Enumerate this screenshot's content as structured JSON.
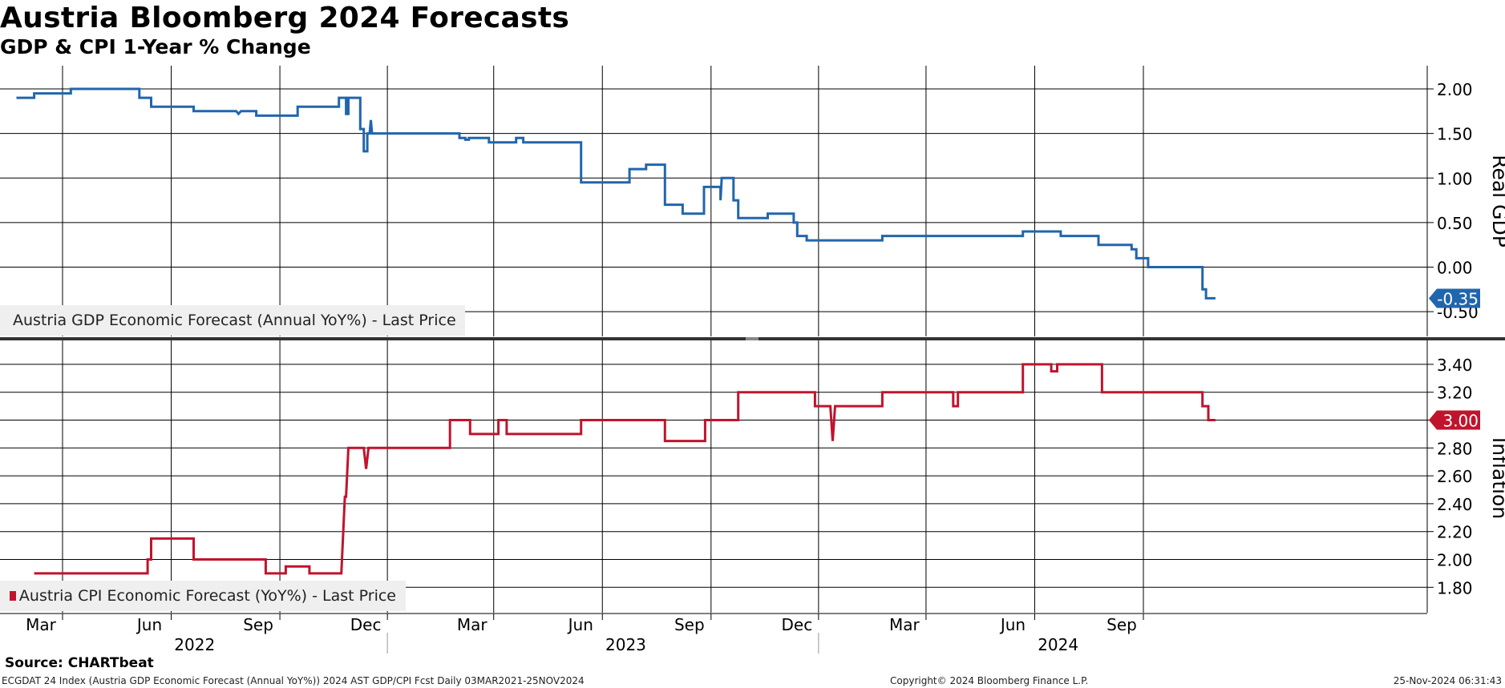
{
  "header": {
    "title": "Austria Bloomberg 2024 Forecasts",
    "subtitle": "GDP & CPI 1-Year % Change"
  },
  "legend": {
    "gdp": "Austria GDP Economic Forecast (Annual YoY%) - Last Price",
    "cpi": "Austria CPI Economic Forecast (YoY%) - Last Price"
  },
  "footer": {
    "source": "Source: CHARTbeat",
    "ticker_line": "ECGDAT 24 Index (Austria GDP Economic Forecast (Annual YoY%)) 2024 AST GDP/CPI Fcst  Daily 03MAR2021-25NOV2024",
    "copyright": "Copyright© 2024 Bloomberg Finance L.P.",
    "timestamp": "25-Nov-2024 06:31:43"
  },
  "colors": {
    "gdp": "#2166ac",
    "cpi": "#c0142d",
    "grid": "#000000",
    "legend_bg": "#efefef"
  },
  "chart_data": [
    {
      "type": "line",
      "name": "gdp-panel",
      "ylabel": "Real GDP",
      "ylim": [
        -0.75,
        2.25
      ],
      "yticks": [
        2.0,
        1.5,
        1.0,
        0.5,
        0.0,
        -0.5
      ],
      "ytick_labels": [
        "2.00",
        "1.50",
        "1.00",
        "0.50",
        "0.00",
        "-0.50"
      ],
      "last_value_label": "-0.35",
      "series": [
        {
          "name": "Austria GDP Economic Forecast (Annual YoY%) - Last Price",
          "points": [
            [
              "2022-01-21",
              1.9
            ],
            [
              "2022-02-05",
              1.9
            ],
            [
              "2022-02-05",
              1.95
            ],
            [
              "2022-03-08",
              1.95
            ],
            [
              "2022-03-08",
              2.0
            ],
            [
              "2022-05-05",
              2.0
            ],
            [
              "2022-05-05",
              1.9
            ],
            [
              "2022-05-15",
              1.9
            ],
            [
              "2022-05-15",
              1.8
            ],
            [
              "2022-06-20",
              1.8
            ],
            [
              "2022-06-20",
              1.75
            ],
            [
              "2022-07-26",
              1.75
            ],
            [
              "2022-07-28",
              1.72
            ],
            [
              "2022-07-30",
              1.75
            ],
            [
              "2022-08-12",
              1.75
            ],
            [
              "2022-08-12",
              1.7
            ],
            [
              "2022-09-16",
              1.7
            ],
            [
              "2022-09-16",
              1.8
            ],
            [
              "2022-10-21",
              1.8
            ],
            [
              "2022-10-21",
              1.9
            ],
            [
              "2022-10-27",
              1.9
            ],
            [
              "2022-10-27",
              1.72
            ],
            [
              "2022-10-29",
              1.72
            ],
            [
              "2022-10-29",
              1.9
            ],
            [
              "2022-11-08",
              1.9
            ],
            [
              "2022-11-08",
              1.55
            ],
            [
              "2022-11-11",
              1.55
            ],
            [
              "2022-11-11",
              1.3
            ],
            [
              "2022-11-14",
              1.3
            ],
            [
              "2022-11-14",
              1.5
            ],
            [
              "2022-11-16",
              1.5
            ],
            [
              "2022-11-17",
              1.65
            ],
            [
              "2022-11-18",
              1.5
            ],
            [
              "2023-01-31",
              1.5
            ],
            [
              "2023-01-31",
              1.45
            ],
            [
              "2023-02-05",
              1.45
            ],
            [
              "2023-02-05",
              1.43
            ],
            [
              "2023-02-08",
              1.43
            ],
            [
              "2023-02-08",
              1.45
            ],
            [
              "2023-02-25",
              1.45
            ],
            [
              "2023-02-25",
              1.4
            ],
            [
              "2023-03-20",
              1.4
            ],
            [
              "2023-03-20",
              1.45
            ],
            [
              "2023-03-26",
              1.45
            ],
            [
              "2023-03-26",
              1.4
            ],
            [
              "2023-05-14",
              1.4
            ],
            [
              "2023-05-14",
              0.95
            ],
            [
              "2023-06-24",
              0.95
            ],
            [
              "2023-06-24",
              1.1
            ],
            [
              "2023-07-08",
              1.1
            ],
            [
              "2023-07-08",
              1.15
            ],
            [
              "2023-07-24",
              1.15
            ],
            [
              "2023-07-24",
              0.7
            ],
            [
              "2023-08-08",
              0.7
            ],
            [
              "2023-08-08",
              0.6
            ],
            [
              "2023-08-26",
              0.6
            ],
            [
              "2023-08-26",
              0.9
            ],
            [
              "2023-09-09",
              0.9
            ],
            [
              "2023-09-09",
              0.75
            ],
            [
              "2023-09-10",
              1.0
            ],
            [
              "2023-09-20",
              1.0
            ],
            [
              "2023-09-20",
              0.75
            ],
            [
              "2023-09-24",
              0.75
            ],
            [
              "2023-09-24",
              0.55
            ],
            [
              "2023-10-19",
              0.55
            ],
            [
              "2023-10-19",
              0.6
            ],
            [
              "2023-11-10",
              0.6
            ],
            [
              "2023-11-10",
              0.5
            ],
            [
              "2023-11-13",
              0.5
            ],
            [
              "2023-11-13",
              0.35
            ],
            [
              "2023-11-21",
              0.35
            ],
            [
              "2023-11-21",
              0.3
            ],
            [
              "2024-01-24",
              0.3
            ],
            [
              "2024-01-24",
              0.35
            ],
            [
              "2024-05-22",
              0.35
            ],
            [
              "2024-05-22",
              0.4
            ],
            [
              "2024-06-23",
              0.4
            ],
            [
              "2024-06-23",
              0.35
            ],
            [
              "2024-07-25",
              0.35
            ],
            [
              "2024-07-25",
              0.25
            ],
            [
              "2024-08-22",
              0.25
            ],
            [
              "2024-08-22",
              0.2
            ],
            [
              "2024-08-26",
              0.2
            ],
            [
              "2024-08-26",
              0.1
            ],
            [
              "2024-09-05",
              0.1
            ],
            [
              "2024-09-05",
              0.0
            ],
            [
              "2024-10-21",
              0.0
            ],
            [
              "2024-10-21",
              -0.25
            ],
            [
              "2024-10-24",
              -0.25
            ],
            [
              "2024-10-24",
              -0.35
            ],
            [
              "2024-11-01",
              -0.35
            ]
          ]
        }
      ]
    },
    {
      "type": "line",
      "name": "cpi-panel",
      "ylabel": "Inflation",
      "ylim": [
        1.65,
        3.5
      ],
      "yticks": [
        3.4,
        3.2,
        3.0,
        2.8,
        2.6,
        2.4,
        2.2,
        2.0,
        1.8
      ],
      "ytick_labels": [
        "3.40",
        "3.20",
        "3.00",
        "2.80",
        "2.60",
        "2.40",
        "2.20",
        "2.00",
        "1.80"
      ],
      "last_value_label": "3.00",
      "series": [
        {
          "name": "Austria CPI Economic Forecast (YoY%) - Last Price",
          "points": [
            [
              "2022-02-05",
              1.9
            ],
            [
              "2022-05-12",
              1.9
            ],
            [
              "2022-05-12",
              2.0
            ],
            [
              "2022-05-15",
              2.0
            ],
            [
              "2022-05-15",
              2.15
            ],
            [
              "2022-06-20",
              2.15
            ],
            [
              "2022-06-20",
              2.0
            ],
            [
              "2022-08-20",
              2.0
            ],
            [
              "2022-08-20",
              1.9
            ],
            [
              "2022-09-06",
              1.9
            ],
            [
              "2022-09-06",
              1.95
            ],
            [
              "2022-09-26",
              1.95
            ],
            [
              "2022-09-26",
              1.9
            ],
            [
              "2022-10-23",
              1.9
            ],
            [
              "2022-10-26",
              2.45
            ],
            [
              "2022-10-27",
              2.45
            ],
            [
              "2022-10-29",
              2.8
            ],
            [
              "2022-11-11",
              2.8
            ],
            [
              "2022-11-13",
              2.65
            ],
            [
              "2022-11-15",
              2.8
            ],
            [
              "2023-01-23",
              2.8
            ],
            [
              "2023-01-23",
              3.0
            ],
            [
              "2023-02-09",
              3.0
            ],
            [
              "2023-02-09",
              2.9
            ],
            [
              "2023-03-05",
              2.9
            ],
            [
              "2023-03-05",
              3.0
            ],
            [
              "2023-03-12",
              3.0
            ],
            [
              "2023-03-12",
              2.9
            ],
            [
              "2023-05-14",
              2.9
            ],
            [
              "2023-05-14",
              3.0
            ],
            [
              "2023-07-24",
              3.0
            ],
            [
              "2023-07-24",
              2.85
            ],
            [
              "2023-08-27",
              2.85
            ],
            [
              "2023-08-27",
              3.0
            ],
            [
              "2023-09-24",
              3.0
            ],
            [
              "2023-09-24",
              3.2
            ],
            [
              "2023-11-28",
              3.2
            ],
            [
              "2023-11-28",
              3.1
            ],
            [
              "2023-12-11",
              3.1
            ],
            [
              "2023-12-13",
              2.85
            ],
            [
              "2023-12-15",
              3.1
            ],
            [
              "2024-01-24",
              3.1
            ],
            [
              "2024-01-24",
              3.2
            ],
            [
              "2024-03-24",
              3.2
            ],
            [
              "2024-03-24",
              3.1
            ],
            [
              "2024-03-28",
              3.1
            ],
            [
              "2024-03-28",
              3.2
            ],
            [
              "2024-05-22",
              3.2
            ],
            [
              "2024-05-22",
              3.4
            ],
            [
              "2024-06-15",
              3.4
            ],
            [
              "2024-06-15",
              3.35
            ],
            [
              "2024-06-20",
              3.35
            ],
            [
              "2024-06-20",
              3.4
            ],
            [
              "2024-07-28",
              3.4
            ],
            [
              "2024-07-28",
              3.2
            ],
            [
              "2024-10-21",
              3.2
            ],
            [
              "2024-10-21",
              3.1
            ],
            [
              "2024-10-26",
              3.1
            ],
            [
              "2024-10-26",
              3.0
            ],
            [
              "2024-11-01",
              3.0
            ]
          ]
        }
      ]
    }
  ],
  "xaxis": {
    "month_ticks": [
      {
        "date": "2022-03-01",
        "label": "Mar"
      },
      {
        "date": "2022-06-01",
        "label": "Jun"
      },
      {
        "date": "2022-09-01",
        "label": "Sep"
      },
      {
        "date": "2022-12-01",
        "label": "Dec"
      },
      {
        "date": "2023-03-01",
        "label": "Mar"
      },
      {
        "date": "2023-06-01",
        "label": "Jun"
      },
      {
        "date": "2023-09-01",
        "label": "Sep"
      },
      {
        "date": "2023-12-01",
        "label": "Dec"
      },
      {
        "date": "2024-03-01",
        "label": "Mar"
      },
      {
        "date": "2024-06-01",
        "label": "Jun"
      },
      {
        "date": "2024-09-01",
        "label": "Sep"
      }
    ],
    "year_labels": [
      {
        "date": "2022-07-01",
        "label": "2022"
      },
      {
        "date": "2023-07-01",
        "label": "2023"
      },
      {
        "date": "2024-07-01",
        "label": "2024"
      }
    ],
    "year_dividers": [
      "2022-12-01",
      "2023-12-01"
    ]
  }
}
